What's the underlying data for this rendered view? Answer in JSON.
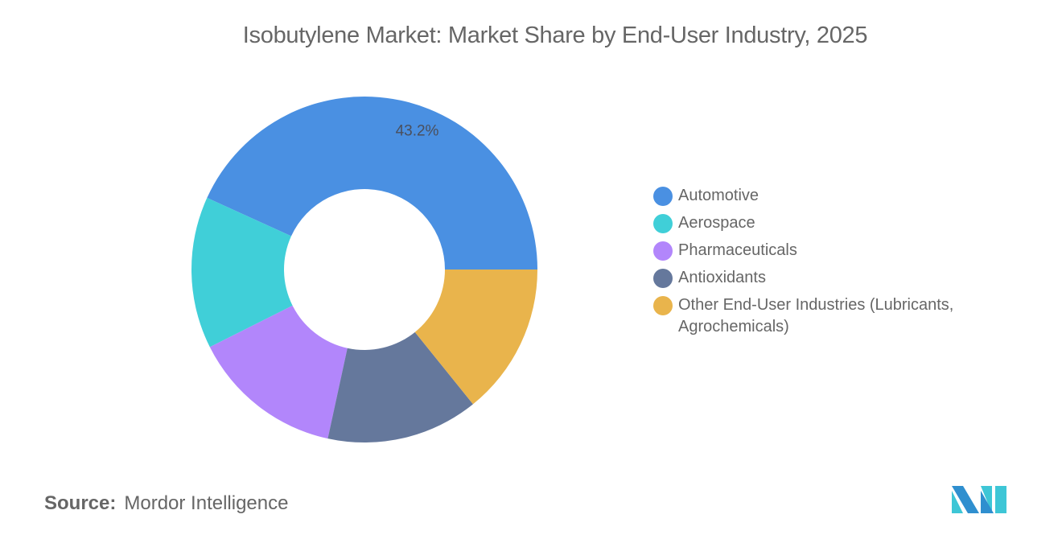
{
  "title": "Isobutylene Market: Market Share by End-User Industry, 2025",
  "source": {
    "label": "Source:",
    "value": "Mordor Intelligence"
  },
  "logo": {
    "name": "mordor-intelligence-logo",
    "colors": [
      "#2f8fcf",
      "#3ec6d6"
    ]
  },
  "chart_data": {
    "type": "pie",
    "variant": "donut",
    "title": "Isobutylene Market: Market Share by End-User Industry, 2025",
    "categories": [
      "Automotive",
      "Aerospace",
      "Pharmaceuticals",
      "Antioxidants",
      "Other End-User Industries (Lubricants, Agrochemicals)"
    ],
    "values": [
      43.2,
      14.2,
      14.2,
      14.2,
      14.2
    ],
    "unit": "%",
    "colors": [
      "#4a90e2",
      "#40cfd8",
      "#b286fb",
      "#65789c",
      "#e9b44c"
    ],
    "visible_data_labels": [
      "43.2%",
      null,
      null,
      null,
      null
    ],
    "start_angle_deg": 0,
    "direction": "counterclockwise-first-slice",
    "legend_position": "right"
  },
  "legend": {
    "items": [
      {
        "label": "Automotive",
        "color": "#4a90e2"
      },
      {
        "label": "Aerospace",
        "color": "#40cfd8"
      },
      {
        "label": "Pharmaceuticals",
        "color": "#b286fb"
      },
      {
        "label": "Antioxidants",
        "color": "#65789c"
      },
      {
        "label": "Other End-User Industries (Lubricants, Agrochemicals)",
        "color": "#e9b44c"
      }
    ]
  }
}
